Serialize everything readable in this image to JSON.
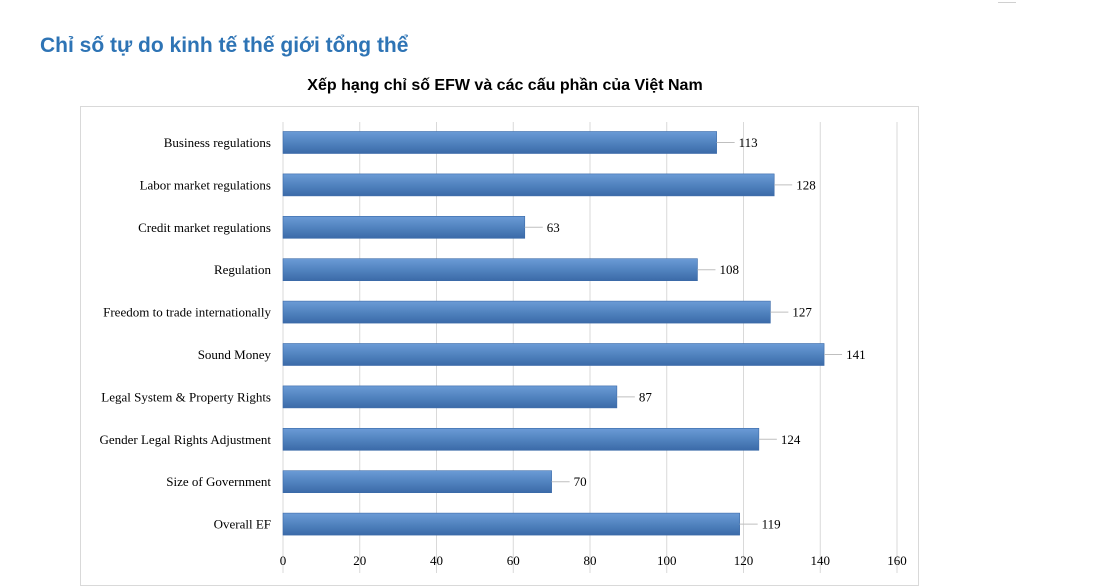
{
  "page": {
    "heading": "Chỉ số tự do kinh tế thế giới tổng thể"
  },
  "colors": {
    "heading": "#2e74b5",
    "bar_fill": "#4f81bd",
    "bar_light": "#6b9bd6",
    "bar_dark": "#3b6aa8",
    "gridline": "#d9d9d9"
  },
  "chart_data": {
    "type": "bar",
    "orientation": "horizontal",
    "title": "Xếp hạng chỉ số EFW và các cấu phần của Việt Nam",
    "categories": [
      "Business regulations",
      "Labor market regulations",
      "Credit market regulations",
      "Regulation",
      "Freedom to trade internationally",
      "Sound Money",
      "Legal System & Property Rights",
      "Gender Legal Rights Adjustment",
      "Size of Government",
      "Overall EF"
    ],
    "values": [
      113,
      128,
      63,
      108,
      127,
      141,
      87,
      124,
      70,
      119
    ],
    "xlim": [
      0,
      160
    ],
    "xticks": [
      0,
      20,
      40,
      60,
      80,
      100,
      120,
      140,
      160
    ],
    "xlabel": "",
    "ylabel": "",
    "grid": "vertical",
    "legend": "none",
    "data_labels": true
  }
}
